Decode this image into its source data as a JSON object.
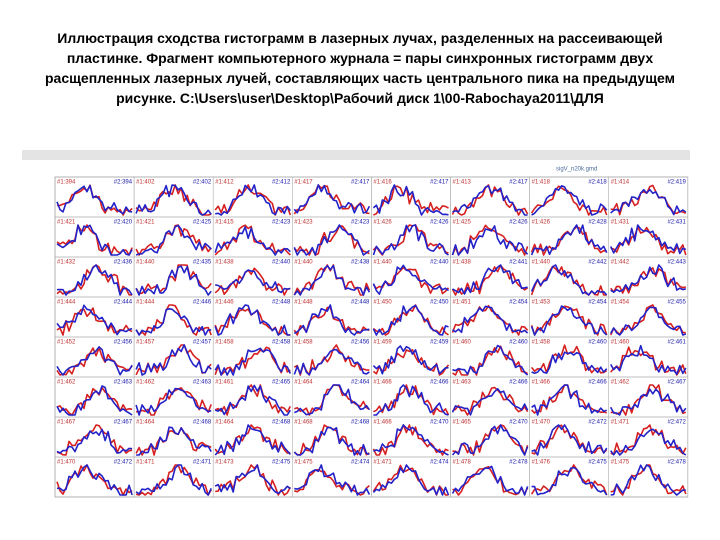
{
  "header": {
    "title": [
      "Иллюстрация сходства гистограмм в лазерных лучах, разделенных на рассеивающей",
      "пластинке. Фрагмент компьютерного  журнала = пары  синхронных гистограмм  двух",
      "расщепленных лазерных лучей, составляющих часть центрального пика на  предыдущем",
      "рисунке. C:\\Users\\user\\Desktop\\Рабочий диск 1\\00-Rabochaya2011\\ДЛЯ"
    ]
  },
  "window": {
    "file": "sigV_n20k.gmd"
  },
  "grid": {
    "rows": [
      [
        [
          "#1:394",
          "#2:394"
        ],
        [
          "#1:402",
          "#2:402"
        ],
        [
          "#1:412",
          "#2:412"
        ],
        [
          "#1:417",
          "#2:417"
        ],
        [
          "#1:416",
          "#2:417"
        ],
        [
          "#1:413",
          "#2:417"
        ],
        [
          "#1:418",
          "#2:418"
        ],
        [
          "#1:414",
          "#2:419"
        ]
      ],
      [
        [
          "#1:421",
          "#2:420"
        ],
        [
          "#1:421",
          "#2:425"
        ],
        [
          "#1:415",
          "#2:423"
        ],
        [
          "#1:423",
          "#2:423"
        ],
        [
          "#1:426",
          "#2:426"
        ],
        [
          "#1:425",
          "#2:426"
        ],
        [
          "#1:426",
          "#2:428"
        ],
        [
          "#1:431",
          "#2:431"
        ]
      ],
      [
        [
          "#1:432",
          "#2:436"
        ],
        [
          "#1:440",
          "#2:435"
        ],
        [
          "#1:438",
          "#2:440"
        ],
        [
          "#1:440",
          "#2:438"
        ],
        [
          "#1:440",
          "#2:440"
        ],
        [
          "#1:438",
          "#2:441"
        ],
        [
          "#1:440",
          "#2:442"
        ],
        [
          "#1:442",
          "#2:443"
        ]
      ],
      [
        [
          "#1:444",
          "#2:444"
        ],
        [
          "#1:444",
          "#2:446"
        ],
        [
          "#1:446",
          "#2:448"
        ],
        [
          "#1:448",
          "#2:448"
        ],
        [
          "#1:450",
          "#2:450"
        ],
        [
          "#1:451",
          "#2:454"
        ],
        [
          "#1:453",
          "#2:454"
        ],
        [
          "#1:454",
          "#2:455"
        ]
      ],
      [
        [
          "#1:452",
          "#2:456"
        ],
        [
          "#1:457",
          "#2:457"
        ],
        [
          "#1:458",
          "#2:458"
        ],
        [
          "#1:458",
          "#2:456"
        ],
        [
          "#1:459",
          "#2:459"
        ],
        [
          "#1:460",
          "#2:460"
        ],
        [
          "#1:458",
          "#2:460"
        ],
        [
          "#1:460",
          "#2:461"
        ]
      ],
      [
        [
          "#1:462",
          "#2:463"
        ],
        [
          "#1:462",
          "#2:463"
        ],
        [
          "#1:461",
          "#2:465"
        ],
        [
          "#1:464",
          "#2:464"
        ],
        [
          "#1:466",
          "#2:466"
        ],
        [
          "#1:463",
          "#2:466"
        ],
        [
          "#1:466",
          "#2:466"
        ],
        [
          "#1:462",
          "#2:467"
        ]
      ],
      [
        [
          "#1:467",
          "#2:467"
        ],
        [
          "#1:464",
          "#2:468"
        ],
        [
          "#1:464",
          "#2:468"
        ],
        [
          "#1:468",
          "#2:468"
        ],
        [
          "#1:466",
          "#2:470"
        ],
        [
          "#1:465",
          "#2:470"
        ],
        [
          "#1:470",
          "#2:472"
        ],
        [
          "#1:471",
          "#2:472"
        ]
      ],
      [
        [
          "#1:470",
          "#2:472"
        ],
        [
          "#1:471",
          "#2:471"
        ],
        [
          "#1:473",
          "#2:475"
        ],
        [
          "#1:475",
          "#2:474"
        ],
        [
          "#1:471",
          "#2:474"
        ],
        [
          "#1:478",
          "#2:478"
        ],
        [
          "#1:476",
          "#2:475"
        ],
        [
          "#1:475",
          "#2:478"
        ]
      ]
    ]
  }
}
